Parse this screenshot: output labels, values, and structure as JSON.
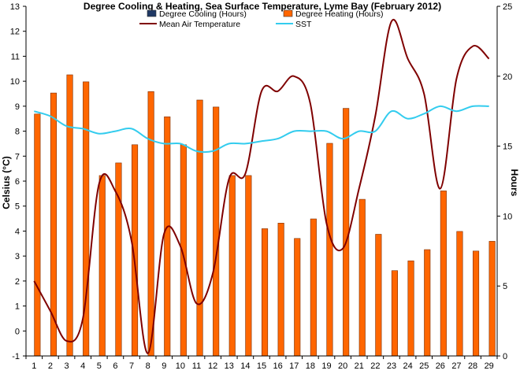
{
  "chart_data": {
    "type": "bar",
    "title": "Degree Cooling & Heating, Sea Surface Temperature, Lyme Bay (February 2012)",
    "ylabel": "Celsius (°C)",
    "y2label": "Hours",
    "xlabel": "",
    "categories": [
      "1",
      "2",
      "3",
      "4",
      "5",
      "6",
      "7",
      "8",
      "9",
      "10",
      "11",
      "12",
      "13",
      "14",
      "15",
      "16",
      "17",
      "18",
      "19",
      "20",
      "21",
      "22",
      "23",
      "24",
      "25",
      "26",
      "27",
      "28",
      "29"
    ],
    "ylim": [
      -1,
      13
    ],
    "y2lim": [
      0,
      25
    ],
    "y_ticks": [
      "-1",
      "0",
      "1",
      "2",
      "3",
      "4",
      "5",
      "6",
      "7",
      "8",
      "9",
      "10",
      "11",
      "12",
      "13"
    ],
    "y2_ticks": [
      "0",
      "5",
      "10",
      "15",
      "20",
      "25"
    ],
    "grid": false,
    "legend_position": "top",
    "series": [
      {
        "name": "Degree Cooling (Hours)",
        "kind": "bar",
        "axis": "right",
        "color": "#1f3864",
        "values": [
          0,
          0,
          0,
          0,
          0,
          0,
          0,
          0,
          0,
          0,
          0,
          0,
          0,
          0,
          0,
          0,
          0,
          0,
          0,
          0,
          0,
          0,
          0,
          0,
          0,
          0,
          0,
          0,
          0
        ]
      },
      {
        "name": "Degree Heating (Hours)",
        "kind": "bar",
        "axis": "right",
        "color": "#ff6600",
        "values": [
          17.3,
          18.8,
          20.1,
          19.6,
          12.9,
          13.8,
          15.1,
          18.9,
          17.1,
          15.1,
          18.3,
          17.8,
          12.9,
          12.9,
          9.1,
          9.5,
          8.4,
          9.8,
          15.2,
          17.7,
          11.2,
          8.7,
          6.1,
          6.8,
          7.6,
          11.8,
          8.9,
          7.5,
          8.2
        ]
      },
      {
        "name": "Mean Air Temperature",
        "kind": "line",
        "axis": "left",
        "color": "#7f0000",
        "values": [
          2.0,
          0.8,
          -0.4,
          0.5,
          5.9,
          5.6,
          3.6,
          -0.9,
          3.9,
          3.4,
          1.1,
          2.3,
          6.1,
          6.3,
          9.6,
          9.6,
          10.2,
          9.1,
          4.3,
          3.3,
          5.7,
          8.6,
          12.4,
          10.9,
          9.5,
          5.7,
          10.1,
          11.4,
          10.9
        ]
      },
      {
        "name": "SST",
        "kind": "line",
        "axis": "left",
        "color": "#33ccee",
        "values": [
          8.8,
          8.6,
          8.2,
          8.1,
          7.9,
          8.0,
          8.1,
          7.7,
          7.5,
          7.5,
          7.2,
          7.2,
          7.5,
          7.5,
          7.6,
          7.7,
          8.0,
          8.0,
          8.0,
          7.7,
          8.0,
          8.0,
          8.8,
          8.5,
          8.7,
          9.0,
          8.8,
          9.0,
          9.0
        ]
      }
    ]
  }
}
